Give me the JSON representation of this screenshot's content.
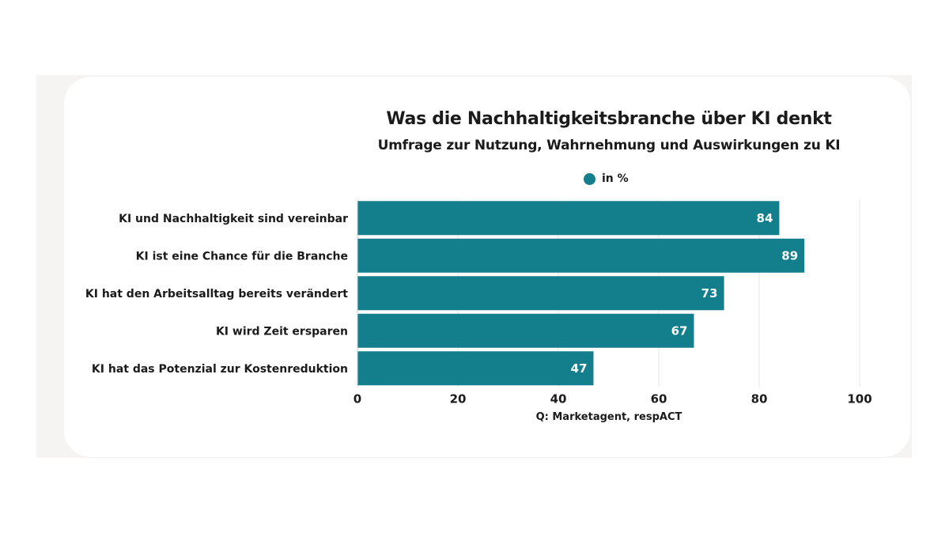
{
  "chart_data": {
    "type": "bar",
    "orientation": "horizontal",
    "title": "Was die Nachhaltigkeitsbranche über KI denkt",
    "subtitle": "Umfrage zur Nutzung, Wahrnehmung und Auswirkungen zu KI",
    "legend": [
      "in %"
    ],
    "legend_position": "top-center",
    "categories": [
      "KI und Nachhaltigkeit sind vereinbar",
      "KI ist eine Chance für die Branche",
      "KI hat den Arbeitsalltag bereits verändert",
      "KI wird Zeit ersparen",
      "KI hat das Potenzial zur Kostenreduktion"
    ],
    "values": [
      84,
      89,
      73,
      67,
      47
    ],
    "xlim": [
      0,
      100
    ],
    "xticks": [
      0,
      20,
      40,
      60,
      80,
      100
    ],
    "grid": true,
    "xlabel": "",
    "ylabel": "",
    "source": "Q: Marketagent, respACT",
    "bar_color": "#137f8d",
    "value_label_color": "#ffffff"
  }
}
